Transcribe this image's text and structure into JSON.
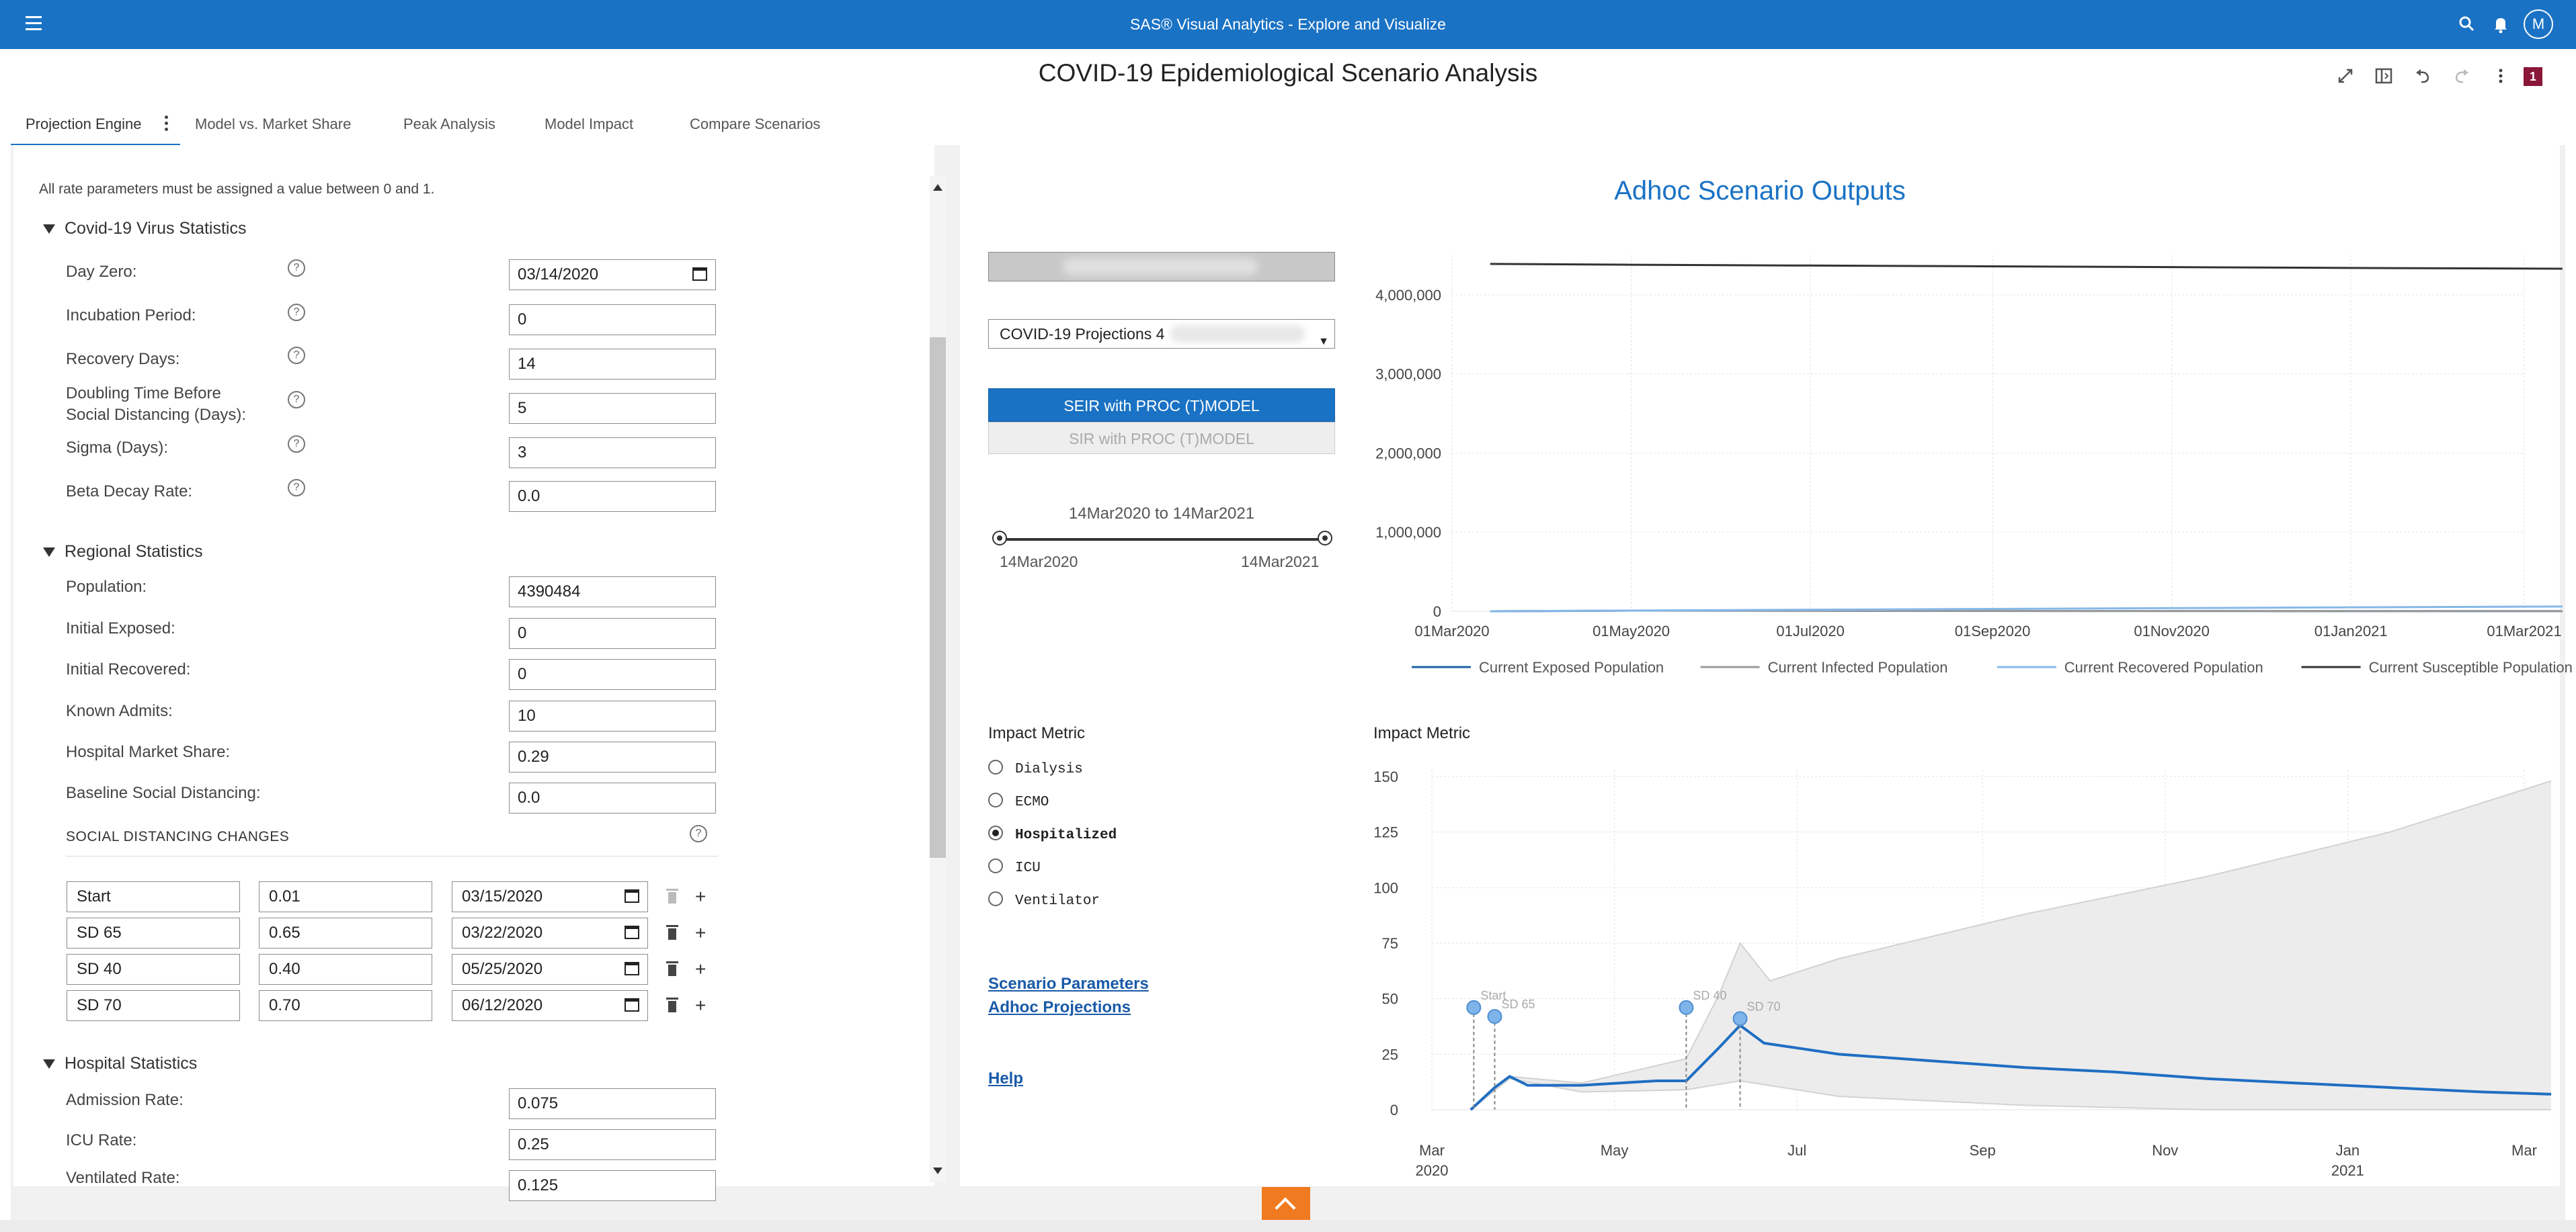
{
  "app": {
    "title": "SAS® Visual Analytics - Explore and Visualize",
    "user_initial": "M"
  },
  "report": {
    "title": "COVID-19 Epidemiological Scenario Analysis",
    "page_badge": "1"
  },
  "tabs": [
    {
      "label": "Projection Engine"
    },
    {
      "label": "Model vs. Market Share"
    },
    {
      "label": "Peak Analysis"
    },
    {
      "label": "Model Impact"
    },
    {
      "label": "Compare Scenarios"
    }
  ],
  "params": {
    "note": "All rate parameters must be assigned a value between 0 and 1.",
    "virus": {
      "title": "Covid-19 Virus Statistics",
      "fields": [
        {
          "label": "Day Zero:",
          "value": "03/14/2020"
        },
        {
          "label": "Incubation Period:",
          "value": "0"
        },
        {
          "label": "Recovery Days:",
          "value": "14"
        },
        {
          "label": "Doubling Time Before",
          "label2": "Social Distancing (Days):",
          "value": "5"
        },
        {
          "label": "Sigma (Days):",
          "value": "3"
        },
        {
          "label": "Beta Decay Rate:",
          "value": "0.0"
        }
      ]
    },
    "regional": {
      "title": "Regional Statistics",
      "fields": [
        {
          "label": "Population:",
          "value": "4390484"
        },
        {
          "label": "Initial Exposed:",
          "value": "0"
        },
        {
          "label": "Initial Recovered:",
          "value": "0"
        },
        {
          "label": "Known Admits:",
          "value": "10"
        },
        {
          "label": "Hospital Market Share:",
          "value": "0.29"
        },
        {
          "label": "Baseline Social Distancing:",
          "value": "0.0"
        }
      ]
    },
    "social_distancing": {
      "title": "SOCIAL DISTANCING CHANGES",
      "rows": [
        {
          "name": "Start",
          "rate": "0.01",
          "date": "03/15/2020"
        },
        {
          "name": "SD 65",
          "rate": "0.65",
          "date": "03/22/2020"
        },
        {
          "name": "SD 40",
          "rate": "0.40",
          "date": "05/25/2020"
        },
        {
          "name": "SD 70",
          "rate": "0.70",
          "date": "06/12/2020"
        }
      ]
    },
    "hospital": {
      "title": "Hospital Statistics",
      "fields": [
        {
          "label": "Admission Rate:",
          "value": "0.075"
        },
        {
          "label": "ICU Rate:",
          "value": "0.25"
        },
        {
          "label": "Ventilated Rate:",
          "value": "0.125"
        }
      ]
    }
  },
  "outputs": {
    "title": "Adhoc Scenario Outputs",
    "dropdown_value": "COVID-19 Projections 4",
    "btn_seir": "SEIR with PROC (T)MODEL",
    "btn_sir": "SIR with PROC (T)MODEL",
    "range_label": "14Mar2020 to 14Mar2021",
    "range_start": "14Mar2020",
    "range_end": "14Mar2021",
    "impact_title": "Impact Metric",
    "impact_options": [
      "Dialysis",
      "ECMO",
      "Hospitalized",
      "ICU",
      "Ventilator"
    ],
    "impact_selected": "Hospitalized",
    "links": {
      "scenario": "Scenario Parameters",
      "adhoc": "Adhoc Projections",
      "help": "Help"
    }
  },
  "chart_data": [
    {
      "type": "line",
      "title": "",
      "x_ticks": [
        "01Mar2020",
        "01May2020",
        "01Jul2020",
        "01Sep2020",
        "01Nov2020",
        "01Jan2021",
        "01Mar2021"
      ],
      "y_ticks": [
        "0",
        "1,000,000",
        "2,000,000",
        "3,000,000",
        "4,000,000"
      ],
      "ylim": [
        0,
        4500000
      ],
      "x": [
        "14Mar2020",
        "01May2020",
        "01Jul2020",
        "01Sep2020",
        "01Nov2020",
        "01Jan2021",
        "14Mar2021"
      ],
      "series": [
        {
          "name": "Current Exposed Population",
          "color": "#1f5fa8",
          "values": [
            0,
            8000,
            6000,
            4000,
            3000,
            2500,
            2000
          ]
        },
        {
          "name": "Current Infected Population",
          "color": "#9a9a9a",
          "values": [
            0,
            9000,
            7000,
            5000,
            3500,
            3000,
            2500
          ]
        },
        {
          "name": "Current Recovered Population",
          "color": "#86b8e8",
          "values": [
            0,
            10000,
            20000,
            30000,
            40000,
            50000,
            60000
          ]
        },
        {
          "name": "Current Susceptible Population",
          "color": "#333333",
          "values": [
            4390484,
            4380000,
            4370000,
            4360000,
            4350000,
            4340000,
            4330000
          ]
        }
      ],
      "legend": "bottom",
      "grid": true
    },
    {
      "type": "line",
      "title": "Impact Metric",
      "x_ticks": [
        [
          "Mar",
          "2020"
        ],
        [
          "May",
          ""
        ],
        [
          "Jul",
          ""
        ],
        [
          "Sep",
          ""
        ],
        [
          "Nov",
          ""
        ],
        [
          "Jan",
          "2021"
        ],
        [
          "Mar",
          ""
        ]
      ],
      "y_ticks": [
        "0",
        "25",
        "50",
        "75",
        "100",
        "125",
        "150"
      ],
      "ylim": [
        0,
        150
      ],
      "series": [
        {
          "name": "Hospitalized",
          "color": "#1f6ec2",
          "points": [
            [
              "2020-03-14",
              0
            ],
            [
              "2020-03-22",
              10
            ],
            [
              "2020-03-27",
              15
            ],
            [
              "2020-04-02",
              11
            ],
            [
              "2020-04-20",
              11
            ],
            [
              "2020-05-15",
              13
            ],
            [
              "2020-05-25",
              13
            ],
            [
              "2020-06-05",
              28
            ],
            [
              "2020-06-12",
              38
            ],
            [
              "2020-06-20",
              30
            ],
            [
              "2020-07-15",
              25
            ],
            [
              "2020-08-15",
              22
            ],
            [
              "2020-09-15",
              19
            ],
            [
              "2020-10-15",
              17
            ],
            [
              "2020-11-15",
              14
            ],
            [
              "2020-12-15",
              12
            ],
            [
              "2021-01-15",
              10
            ],
            [
              "2021-02-15",
              8
            ],
            [
              "2021-03-10",
              7
            ]
          ]
        },
        {
          "name": "Upper bound",
          "color": "#ececec",
          "points": [
            [
              "2020-03-14",
              0
            ],
            [
              "2020-03-27",
              15
            ],
            [
              "2020-04-20",
              12
            ],
            [
              "2020-05-25",
              23
            ],
            [
              "2020-06-05",
              52
            ],
            [
              "2020-06-12",
              75
            ],
            [
              "2020-06-22",
              58
            ],
            [
              "2020-07-15",
              68
            ],
            [
              "2020-09-15",
              88
            ],
            [
              "2020-11-15",
              105
            ],
            [
              "2021-01-15",
              125
            ],
            [
              "2021-03-10",
              148
            ]
          ]
        },
        {
          "name": "Lower bound",
          "color": "#ececec",
          "points": [
            [
              "2020-03-14",
              0
            ],
            [
              "2020-03-27",
              14
            ],
            [
              "2020-04-20",
              8
            ],
            [
              "2020-05-25",
              9
            ],
            [
              "2020-06-12",
              13
            ],
            [
              "2020-07-15",
              6
            ],
            [
              "2020-09-15",
              2
            ],
            [
              "2020-11-15",
              0
            ],
            [
              "2021-03-10",
              0
            ]
          ]
        }
      ],
      "annotations": [
        {
          "label": "Start",
          "date": "2020-03-15",
          "value": 46
        },
        {
          "label": "SD 65",
          "date": "2020-03-22",
          "value": 42
        },
        {
          "label": "SD 40",
          "date": "2020-05-25",
          "value": 46
        },
        {
          "label": "SD 70",
          "date": "2020-06-12",
          "value": 41
        }
      ],
      "grid": true
    }
  ]
}
